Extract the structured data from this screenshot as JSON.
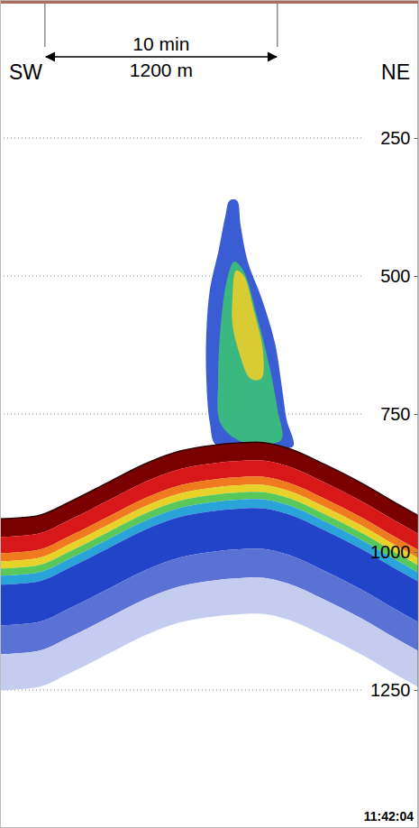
{
  "chart_data": {
    "type": "echogram",
    "xlim": [
      0,
      2163
    ],
    "ylim": [
      0,
      1500
    ],
    "yticks": [
      250,
      500,
      750,
      1000,
      1250
    ],
    "grid": true,
    "tick_labels": "y",
    "annotations": {
      "left": "SW",
      "right": "NE",
      "time": "11:42:04"
    },
    "scale_bar": {
      "start": 232,
      "length": 1200,
      "time_label": "10 min",
      "distance_label": "1200 m"
    },
    "seabed": {
      "x": [
        0,
        186,
        372,
        558,
        744,
        930,
        1116,
        1326,
        1488,
        1674,
        1860,
        2047,
        2163
      ],
      "depth": [
        940,
        935,
        907,
        874,
        841,
        817,
        806,
        801,
        812,
        841,
        874,
        912,
        935
      ]
    },
    "plume": [
      {
        "color": "#2a4fd0",
        "x": [
          1116,
          1084,
          1065,
          1065,
          1084,
          1126,
          1163,
          1186,
          1223,
          1242,
          1279,
          1349,
          1419,
          1456,
          1479,
          1512,
          1326
        ],
        "depth": [
          806,
          768,
          686,
          605,
          523,
          458,
          392,
          363,
          363,
          408,
          474,
          539,
          621,
          703,
          760,
          809,
          801
        ]
      },
      {
        "color": "#3cbf78",
        "x": [
          1140,
          1126,
          1140,
          1172,
          1209,
          1256,
          1326,
          1395,
          1433,
          1451,
          1256
        ],
        "depth": [
          768,
          686,
          588,
          507,
          474,
          490,
          572,
          670,
          743,
          797,
          801
        ]
      },
      {
        "color": "#e6cc2e",
        "x": [
          1200,
          1219,
          1256,
          1312,
          1358,
          1349,
          1293,
          1233,
          1200
        ],
        "depth": [
          539,
          490,
          498,
          564,
          637,
          686,
          686,
          637,
          588
        ]
      }
    ]
  }
}
